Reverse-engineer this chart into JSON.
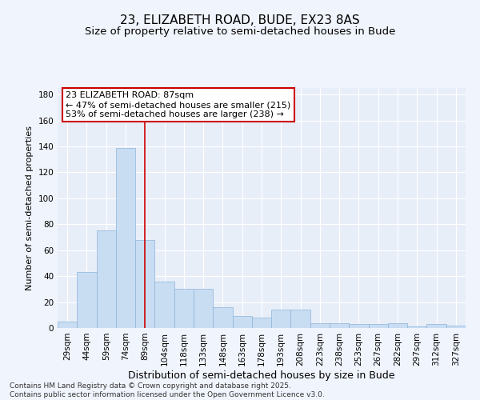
{
  "title": "23, ELIZABETH ROAD, BUDE, EX23 8AS",
  "subtitle": "Size of property relative to semi-detached houses in Bude",
  "xlabel": "Distribution of semi-detached houses by size in Bude",
  "ylabel": "Number of semi-detached properties",
  "categories": [
    "29sqm",
    "44sqm",
    "59sqm",
    "74sqm",
    "89sqm",
    "104sqm",
    "118sqm",
    "133sqm",
    "148sqm",
    "163sqm",
    "178sqm",
    "193sqm",
    "208sqm",
    "223sqm",
    "238sqm",
    "253sqm",
    "267sqm",
    "282sqm",
    "297sqm",
    "312sqm",
    "327sqm"
  ],
  "values": [
    5,
    43,
    75,
    139,
    68,
    36,
    30,
    30,
    16,
    9,
    8,
    14,
    14,
    4,
    4,
    3,
    3,
    4,
    1,
    3,
    2
  ],
  "bar_color": "#c9ddf2",
  "bar_edge_color": "#8ab4d9",
  "vline_x_index": 4,
  "vline_color": "#cc0000",
  "annotation_line1": "23 ELIZABETH ROAD: 87sqm",
  "annotation_line2": "← 47% of semi-detached houses are smaller (215)",
  "annotation_line3": "53% of semi-detached houses are larger (238) →",
  "annotation_box_color": "#ffffff",
  "annotation_box_edge": "#cc0000",
  "ylim": [
    0,
    185
  ],
  "yticks": [
    0,
    20,
    40,
    60,
    80,
    100,
    120,
    140,
    160,
    180
  ],
  "bg_color": "#f0f4fc",
  "plot_bg_color": "#e8eef8",
  "grid_color": "#ffffff",
  "footer": "Contains HM Land Registry data © Crown copyright and database right 2025.\nContains public sector information licensed under the Open Government Licence v3.0.",
  "title_fontsize": 11,
  "subtitle_fontsize": 9.5,
  "xlabel_fontsize": 9,
  "ylabel_fontsize": 8,
  "tick_fontsize": 7.5,
  "annotation_fontsize": 8,
  "footer_fontsize": 6.5
}
